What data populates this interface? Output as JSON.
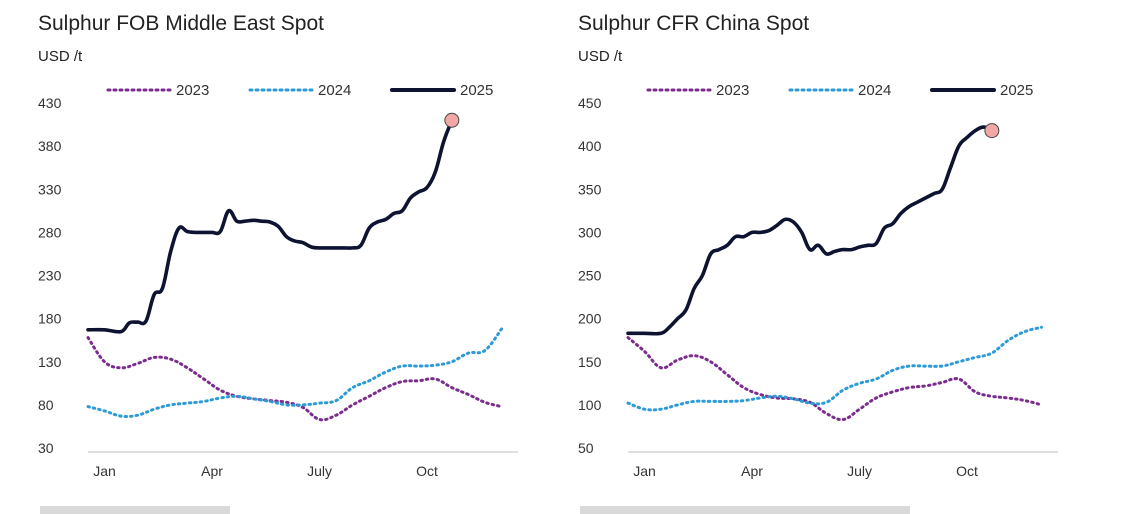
{
  "chart_data": [
    {
      "type": "line",
      "title": "Sulphur FOB Middle East Spot",
      "ylabel": "USD /t",
      "ylim": [
        30,
        430
      ],
      "yticks": [
        30,
        80,
        130,
        180,
        230,
        280,
        330,
        380,
        430
      ],
      "xlim": [
        1,
        53
      ],
      "xticks": [
        {
          "label": "Jan",
          "week": 3
        },
        {
          "label": "Apr",
          "week": 16
        },
        {
          "label": "July",
          "week": 29
        },
        {
          "label": "Oct",
          "week": 42
        }
      ],
      "legend": "top",
      "series": [
        {
          "name": "2023",
          "color": "#7b2d8e",
          "style": "dotted",
          "x": [
            1,
            3,
            5,
            7,
            9,
            11,
            13,
            15,
            17,
            19,
            21,
            23,
            25,
            27,
            29,
            31,
            33,
            35,
            37,
            39,
            41,
            43,
            45,
            47,
            49,
            51
          ],
          "y": [
            158,
            130,
            123,
            128,
            135,
            133,
            123,
            110,
            97,
            90,
            87,
            85,
            83,
            77,
            63,
            68,
            80,
            90,
            100,
            107,
            108,
            110,
            100,
            92,
            83,
            78
          ]
        },
        {
          "name": "2024",
          "color": "#2e9bd6",
          "style": "dotted",
          "x": [
            1,
            3,
            5,
            7,
            9,
            11,
            13,
            15,
            17,
            19,
            21,
            23,
            25,
            27,
            29,
            31,
            33,
            35,
            37,
            39,
            41,
            43,
            45,
            47,
            49,
            51
          ],
          "y": [
            78,
            73,
            67,
            68,
            75,
            80,
            82,
            84,
            88,
            90,
            87,
            84,
            80,
            80,
            82,
            85,
            100,
            108,
            118,
            125,
            125,
            126,
            130,
            140,
            143,
            168
          ]
        },
        {
          "name": "2025",
          "color": "#0d1330",
          "style": "solid",
          "x": [
            1,
            3,
            5,
            6,
            7,
            8,
            9,
            10,
            11,
            12,
            13,
            14,
            15,
            16,
            17,
            18,
            19,
            20,
            21,
            22,
            23,
            24,
            25,
            26,
            27,
            28,
            29,
            30,
            31,
            32,
            33,
            34,
            35,
            36,
            37,
            38,
            39,
            40,
            41,
            42,
            43,
            44,
            45
          ],
          "y": [
            167,
            167,
            165,
            175,
            176,
            177,
            208,
            215,
            258,
            285,
            281,
            280,
            280,
            280,
            281,
            305,
            293,
            293,
            294,
            293,
            292,
            287,
            275,
            270,
            268,
            263,
            262,
            262,
            262,
            262,
            262,
            265,
            285,
            292,
            295,
            302,
            305,
            320,
            327,
            332,
            350,
            385,
            410
          ]
        }
      ],
      "end_marker": {
        "x": 45,
        "y": 410,
        "color": "#f2a7a7"
      }
    },
    {
      "type": "line",
      "title": "Sulphur CFR China Spot",
      "ylabel": "USD /t",
      "ylim": [
        50,
        450
      ],
      "yticks": [
        50,
        100,
        150,
        200,
        250,
        300,
        350,
        400,
        450
      ],
      "xlim": [
        1,
        53
      ],
      "xticks": [
        {
          "label": "Jan",
          "week": 3
        },
        {
          "label": "Apr",
          "week": 16
        },
        {
          "label": "July",
          "week": 29
        },
        {
          "label": "Oct",
          "week": 42
        }
      ],
      "legend": "top",
      "series": [
        {
          "name": "2023",
          "color": "#7b2d8e",
          "style": "dotted",
          "x": [
            1,
            3,
            5,
            7,
            9,
            11,
            13,
            15,
            17,
            19,
            21,
            23,
            25,
            27,
            29,
            31,
            33,
            35,
            37,
            39,
            41,
            43,
            45,
            47,
            49,
            51
          ],
          "y": [
            178,
            162,
            143,
            152,
            157,
            150,
            135,
            120,
            112,
            108,
            107,
            103,
            90,
            83,
            95,
            108,
            115,
            120,
            122,
            126,
            130,
            115,
            110,
            108,
            105,
            100
          ]
        },
        {
          "name": "2024",
          "color": "#2e9bd6",
          "style": "dotted",
          "x": [
            1,
            3,
            5,
            7,
            9,
            11,
            13,
            15,
            17,
            19,
            21,
            23,
            25,
            27,
            29,
            31,
            33,
            35,
            37,
            39,
            41,
            43,
            45,
            47,
            49,
            51
          ],
          "y": [
            102,
            95,
            95,
            100,
            104,
            104,
            104,
            105,
            108,
            110,
            107,
            102,
            103,
            117,
            125,
            130,
            140,
            145,
            145,
            145,
            150,
            155,
            160,
            175,
            185,
            190
          ]
        },
        {
          "name": "2025",
          "color": "#0d1330",
          "style": "solid",
          "x": [
            1,
            3,
            5,
            6,
            7,
            8,
            9,
            10,
            11,
            12,
            13,
            14,
            15,
            16,
            17,
            18,
            19,
            20,
            21,
            22,
            23,
            24,
            25,
            26,
            27,
            28,
            29,
            30,
            31,
            32,
            33,
            34,
            35,
            36,
            37,
            38,
            39,
            40,
            41,
            42,
            43,
            44,
            45
          ],
          "y": [
            183,
            183,
            183,
            190,
            200,
            210,
            235,
            250,
            275,
            280,
            285,
            295,
            295,
            300,
            300,
            302,
            308,
            315,
            312,
            300,
            280,
            285,
            275,
            278,
            280,
            280,
            283,
            285,
            287,
            305,
            310,
            322,
            330,
            335,
            340,
            345,
            350,
            375,
            400,
            410,
            418,
            422,
            418
          ]
        }
      ],
      "end_marker": {
        "x": 45,
        "y": 418,
        "color": "#f2a7a7"
      }
    }
  ]
}
